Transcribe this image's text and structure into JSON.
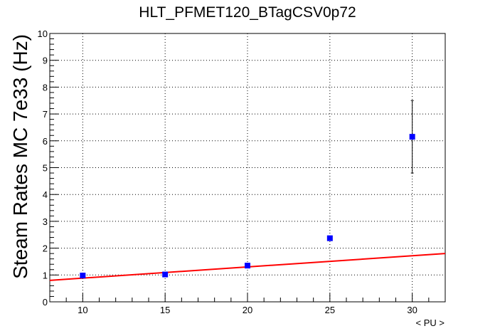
{
  "chart_data": {
    "type": "scatter",
    "title": "HLT_PFMET120_BTagCSV0p72",
    "xlabel": "< PU >",
    "ylabel": "Steam Rates MC 7e33 (Hz)",
    "xlim": [
      8,
      32
    ],
    "ylim": [
      0,
      10
    ],
    "x_ticks": [
      10,
      15,
      20,
      25,
      30
    ],
    "y_ticks": [
      0,
      1,
      2,
      3,
      4,
      5,
      6,
      7,
      8,
      9,
      10
    ],
    "grid": true,
    "series": [
      {
        "type": "points",
        "color": "#0000ff",
        "x": [
          10,
          15,
          20,
          25,
          30
        ],
        "y": [
          0.98,
          1.02,
          1.35,
          2.37,
          6.15
        ],
        "yerr_low": [
          0.0,
          0.0,
          0.0,
          0.0,
          1.35
        ],
        "yerr_high": [
          0.0,
          0.0,
          0.0,
          0.0,
          1.35
        ]
      },
      {
        "type": "line",
        "color": "#ff0000",
        "x": [
          8,
          32
        ],
        "y": [
          0.8,
          1.8
        ]
      }
    ]
  }
}
